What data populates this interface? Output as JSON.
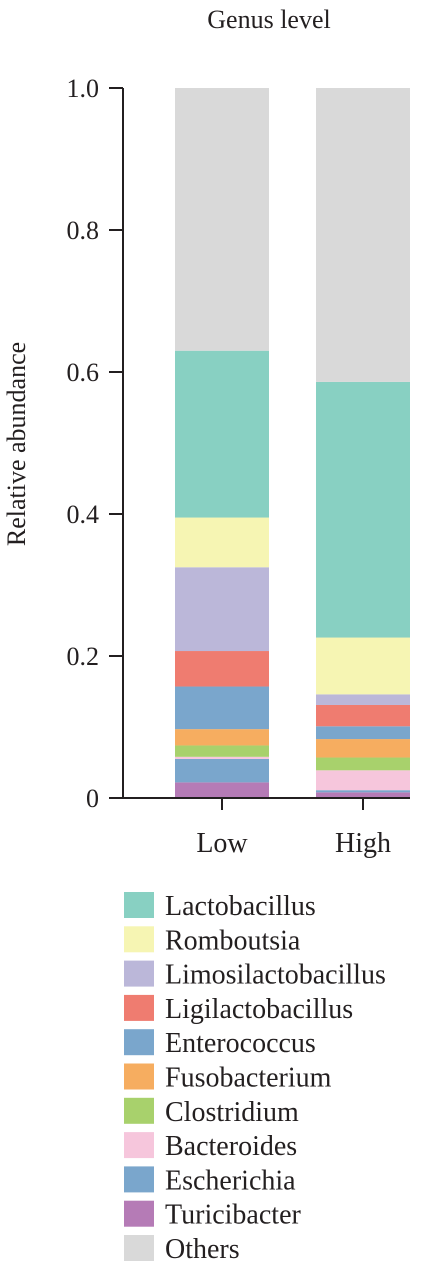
{
  "chart_data": {
    "type": "bar",
    "stacked": true,
    "title": "Genus level",
    "xlabel": "",
    "ylabel": "Relative abundance",
    "ylim": [
      0,
      1.0
    ],
    "yticks": [
      {
        "value": 0,
        "label": "0"
      },
      {
        "value": 0.2,
        "label": "0.2"
      },
      {
        "value": 0.4,
        "label": "0.4"
      },
      {
        "value": 0.6,
        "label": "0.6"
      },
      {
        "value": 0.8,
        "label": "0.8"
      },
      {
        "value": 1.0,
        "label": "1.0"
      }
    ],
    "categories": [
      "Low",
      "High"
    ],
    "series": [
      {
        "name": "Turicibacter",
        "color": "#b57bb6",
        "values": [
          0.022,
          0.008
        ]
      },
      {
        "name": "Escherichia",
        "color": "#7aa6cc",
        "values": [
          0.033,
          0.003
        ]
      },
      {
        "name": "Bacteroides",
        "color": "#f6c6dc",
        "values": [
          0.003,
          0.028
        ]
      },
      {
        "name": "Clostridium",
        "color": "#a8d16c",
        "values": [
          0.016,
          0.018
        ]
      },
      {
        "name": "Fusobacterium",
        "color": "#f6ad60",
        "values": [
          0.023,
          0.026
        ]
      },
      {
        "name": "Enterococcus",
        "color": "#7aa6cc",
        "values": [
          0.06,
          0.018
        ]
      },
      {
        "name": "Ligilactobacillus",
        "color": "#ef7c70",
        "values": [
          0.05,
          0.03
        ]
      },
      {
        "name": "Limosilactobacillus",
        "color": "#bbb7d9",
        "values": [
          0.118,
          0.015
        ]
      },
      {
        "name": "Romboutsia",
        "color": "#f6f5b3",
        "values": [
          0.07,
          0.08
        ]
      },
      {
        "name": "Lactobacillus",
        "color": "#88d0c2",
        "values": [
          0.235,
          0.36
        ]
      },
      {
        "name": "Others",
        "color": "#d9d9d9",
        "values": [
          0.37,
          0.414
        ]
      }
    ],
    "legend": {
      "placement": "bottom",
      "order": [
        "Lactobacillus",
        "Romboutsia",
        "Limosilactobacillus",
        "Ligilactobacillus",
        "Enterococcus",
        "Fusobacterium",
        "Clostridium",
        "Bacteroides",
        "Escherichia",
        "Turicibacter",
        "Others"
      ]
    },
    "grid": false
  }
}
